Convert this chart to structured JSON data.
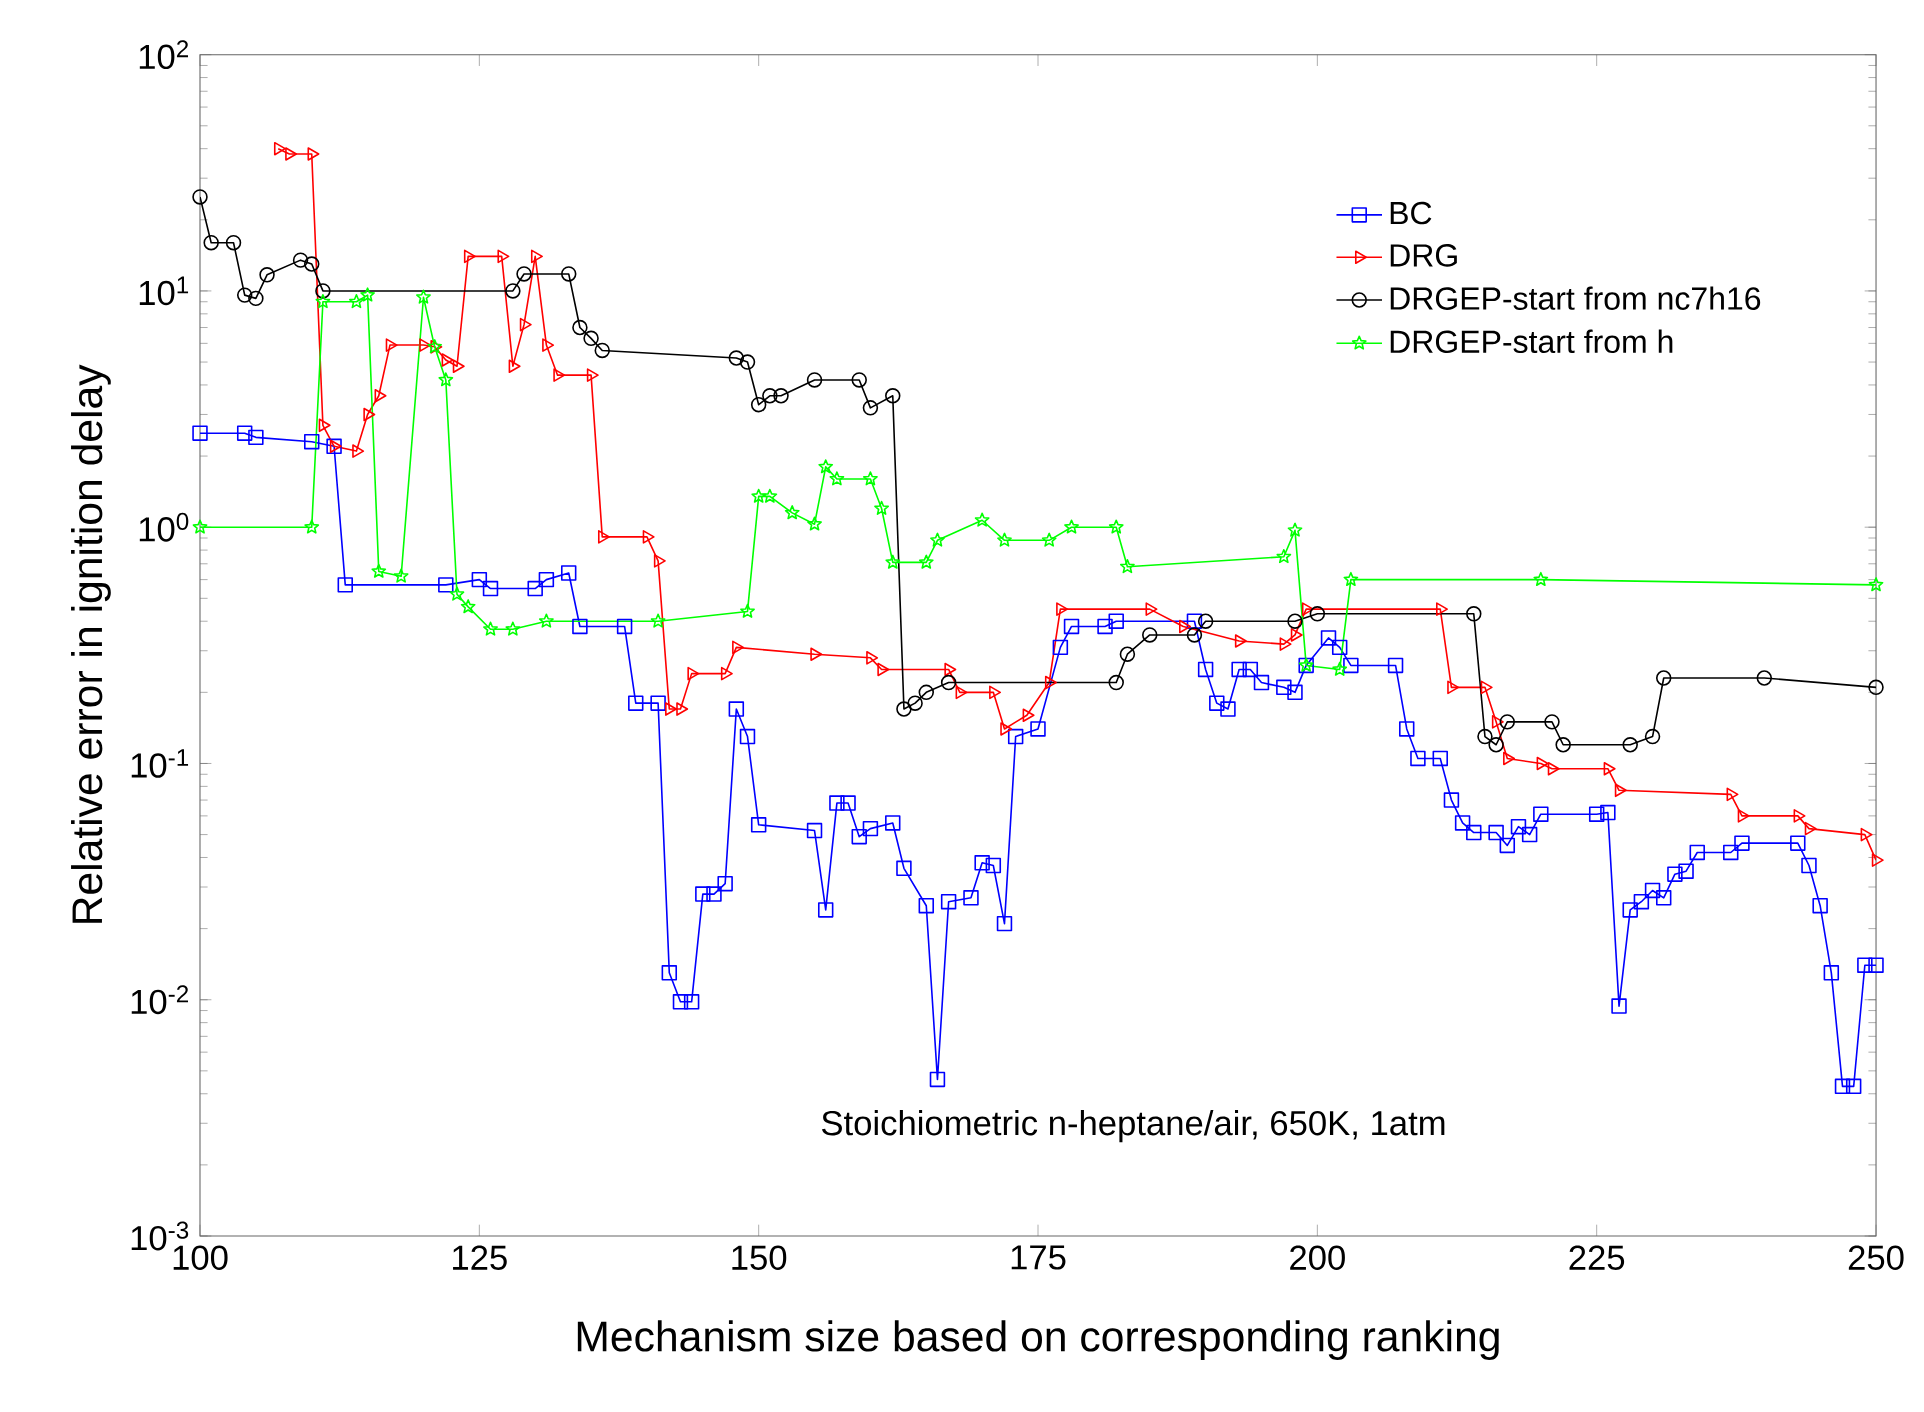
{
  "chart_data": {
    "type": "line",
    "xlabel": "Mechanism size based on corresponding ranking",
    "ylabel": "Relative error in ignition delay",
    "annotations": [
      "Stoichiometric n-heptane/air, 650K, 1atm"
    ],
    "xlim": [
      100,
      250
    ],
    "xticks": [
      100,
      125,
      150,
      175,
      200,
      225,
      250
    ],
    "ylim": [
      0.001,
      100
    ],
    "yticks": [
      {
        "value": 0.001,
        "label": "10$^{-3}$"
      },
      {
        "value": 0.01,
        "label": "10$^{-2}$"
      },
      {
        "value": 0.1,
        "label": "10$^{-1}$"
      },
      {
        "value": 1,
        "label": "10$^{0}$"
      },
      {
        "value": 10,
        "label": "10$^{1}$"
      },
      {
        "value": 100,
        "label": "10$^{2}$"
      }
    ],
    "log": "y",
    "legend": "top right",
    "line_style": "solid",
    "series": [
      {
        "name": "BC",
        "color": "#0000ff",
        "marker": "square",
        "x": [
          100,
          104,
          105,
          110,
          112,
          113,
          122,
          125,
          126,
          130,
          131,
          133,
          134,
          138,
          139,
          141,
          142,
          143,
          144,
          145,
          146,
          147,
          148,
          149,
          150,
          155,
          156,
          157,
          158,
          159,
          160,
          162,
          163,
          165,
          166,
          167,
          169,
          170,
          171,
          172,
          173,
          175,
          177,
          178,
          181,
          182,
          189,
          190,
          191,
          192,
          193,
          194,
          195,
          197,
          198,
          199,
          201,
          202,
          203,
          207,
          208,
          209,
          211,
          212,
          213,
          214,
          216,
          217,
          218,
          219,
          220,
          225,
          226,
          227,
          228,
          229,
          230,
          231,
          232,
          233,
          234,
          237,
          238,
          243,
          244,
          245,
          246,
          247,
          248,
          249,
          250
        ],
        "values": [
          2.5,
          2.5,
          2.4,
          2.3,
          2.2,
          0.57,
          0.57,
          0.6,
          0.55,
          0.55,
          0.6,
          0.64,
          0.38,
          0.38,
          0.18,
          0.18,
          0.013,
          0.0098,
          0.0098,
          0.028,
          0.028,
          0.031,
          0.17,
          0.13,
          0.055,
          0.052,
          0.024,
          0.068,
          0.068,
          0.049,
          0.053,
          0.056,
          0.036,
          0.025,
          0.0046,
          0.026,
          0.027,
          0.038,
          0.037,
          0.021,
          0.13,
          0.14,
          0.31,
          0.38,
          0.38,
          0.4,
          0.4,
          0.25,
          0.18,
          0.17,
          0.25,
          0.25,
          0.22,
          0.21,
          0.2,
          0.26,
          0.34,
          0.31,
          0.26,
          0.26,
          0.14,
          0.105,
          0.105,
          0.07,
          0.056,
          0.051,
          0.051,
          0.045,
          0.054,
          0.05,
          0.061,
          0.061,
          0.062,
          0.0094,
          0.024,
          0.026,
          0.029,
          0.027,
          0.034,
          0.035,
          0.042,
          0.042,
          0.046,
          0.046,
          0.037,
          0.025,
          0.013,
          0.0043,
          0.0043,
          0.014,
          0.014
        ]
      },
      {
        "name": "DRG",
        "color": "#ff0000",
        "marker": "triangle",
        "x": [
          107,
          108,
          110,
          111,
          112,
          114,
          115,
          116,
          117,
          120,
          121,
          122,
          123,
          124,
          127,
          128,
          129,
          130,
          131,
          132,
          135,
          136,
          140,
          141,
          142,
          143,
          144,
          147,
          148,
          155,
          160,
          161,
          167,
          168,
          171,
          172,
          174,
          176,
          177,
          185,
          188,
          193,
          197,
          198,
          199,
          211,
          212,
          215,
          216,
          217,
          220,
          221,
          226,
          227,
          237,
          238,
          243,
          244,
          249,
          250
        ],
        "values": [
          40,
          38,
          38,
          2.7,
          2.2,
          2.1,
          3.0,
          3.6,
          5.9,
          5.9,
          5.8,
          5.1,
          4.8,
          14,
          14,
          4.8,
          7.2,
          14,
          5.9,
          4.4,
          4.4,
          0.91,
          0.91,
          0.72,
          0.17,
          0.17,
          0.24,
          0.24,
          0.31,
          0.29,
          0.28,
          0.25,
          0.25,
          0.2,
          0.2,
          0.14,
          0.16,
          0.22,
          0.45,
          0.45,
          0.38,
          0.33,
          0.32,
          0.35,
          0.45,
          0.45,
          0.21,
          0.21,
          0.15,
          0.105,
          0.1,
          0.095,
          0.095,
          0.077,
          0.074,
          0.06,
          0.06,
          0.053,
          0.05,
          0.039
        ]
      },
      {
        "name": "DRGEP-start from nc7h16",
        "color": "#000000",
        "marker": "circle",
        "x": [
          100,
          101,
          103,
          104,
          105,
          106,
          109,
          110,
          111,
          128,
          129,
          133,
          134,
          135,
          136,
          148,
          149,
          150,
          151,
          152,
          155,
          159,
          160,
          162,
          163,
          164,
          165,
          167,
          182,
          183,
          185,
          189,
          190,
          198,
          200,
          214,
          215,
          216,
          217,
          221,
          222,
          228,
          230,
          231,
          240,
          250
        ],
        "values": [
          25,
          16,
          16,
          9.6,
          9.3,
          11.7,
          13.5,
          13,
          10,
          10,
          11.8,
          11.8,
          7.0,
          6.3,
          5.6,
          5.2,
          5.0,
          3.3,
          3.6,
          3.6,
          4.2,
          4.2,
          3.2,
          3.6,
          0.17,
          0.18,
          0.2,
          0.22,
          0.22,
          0.29,
          0.35,
          0.35,
          0.4,
          0.4,
          0.43,
          0.43,
          0.13,
          0.12,
          0.15,
          0.15,
          0.12,
          0.12,
          0.13,
          0.23,
          0.23,
          0.21
        ]
      },
      {
        "name": "DRGEP-start from h",
        "color": "#00ff00",
        "marker": "star",
        "x": [
          100,
          110,
          111,
          114,
          115,
          116,
          118,
          120,
          121,
          122,
          123,
          124,
          126,
          128,
          131,
          141,
          149,
          150,
          151,
          153,
          155,
          156,
          157,
          160,
          161,
          162,
          165,
          166,
          170,
          172,
          176,
          178,
          182,
          183,
          197,
          198,
          199,
          202,
          203,
          220,
          250
        ],
        "values": [
          1.0,
          1.0,
          9.0,
          9.0,
          9.6,
          0.65,
          0.62,
          9.4,
          5.8,
          4.2,
          0.52,
          0.46,
          0.37,
          0.37,
          0.4,
          0.4,
          0.44,
          1.35,
          1.35,
          1.15,
          1.03,
          1.8,
          1.6,
          1.6,
          1.2,
          0.71,
          0.71,
          0.88,
          1.07,
          0.88,
          0.88,
          1.0,
          1.0,
          0.68,
          0.75,
          0.97,
          0.26,
          0.25,
          0.6,
          0.6,
          0.57
        ]
      }
    ]
  }
}
